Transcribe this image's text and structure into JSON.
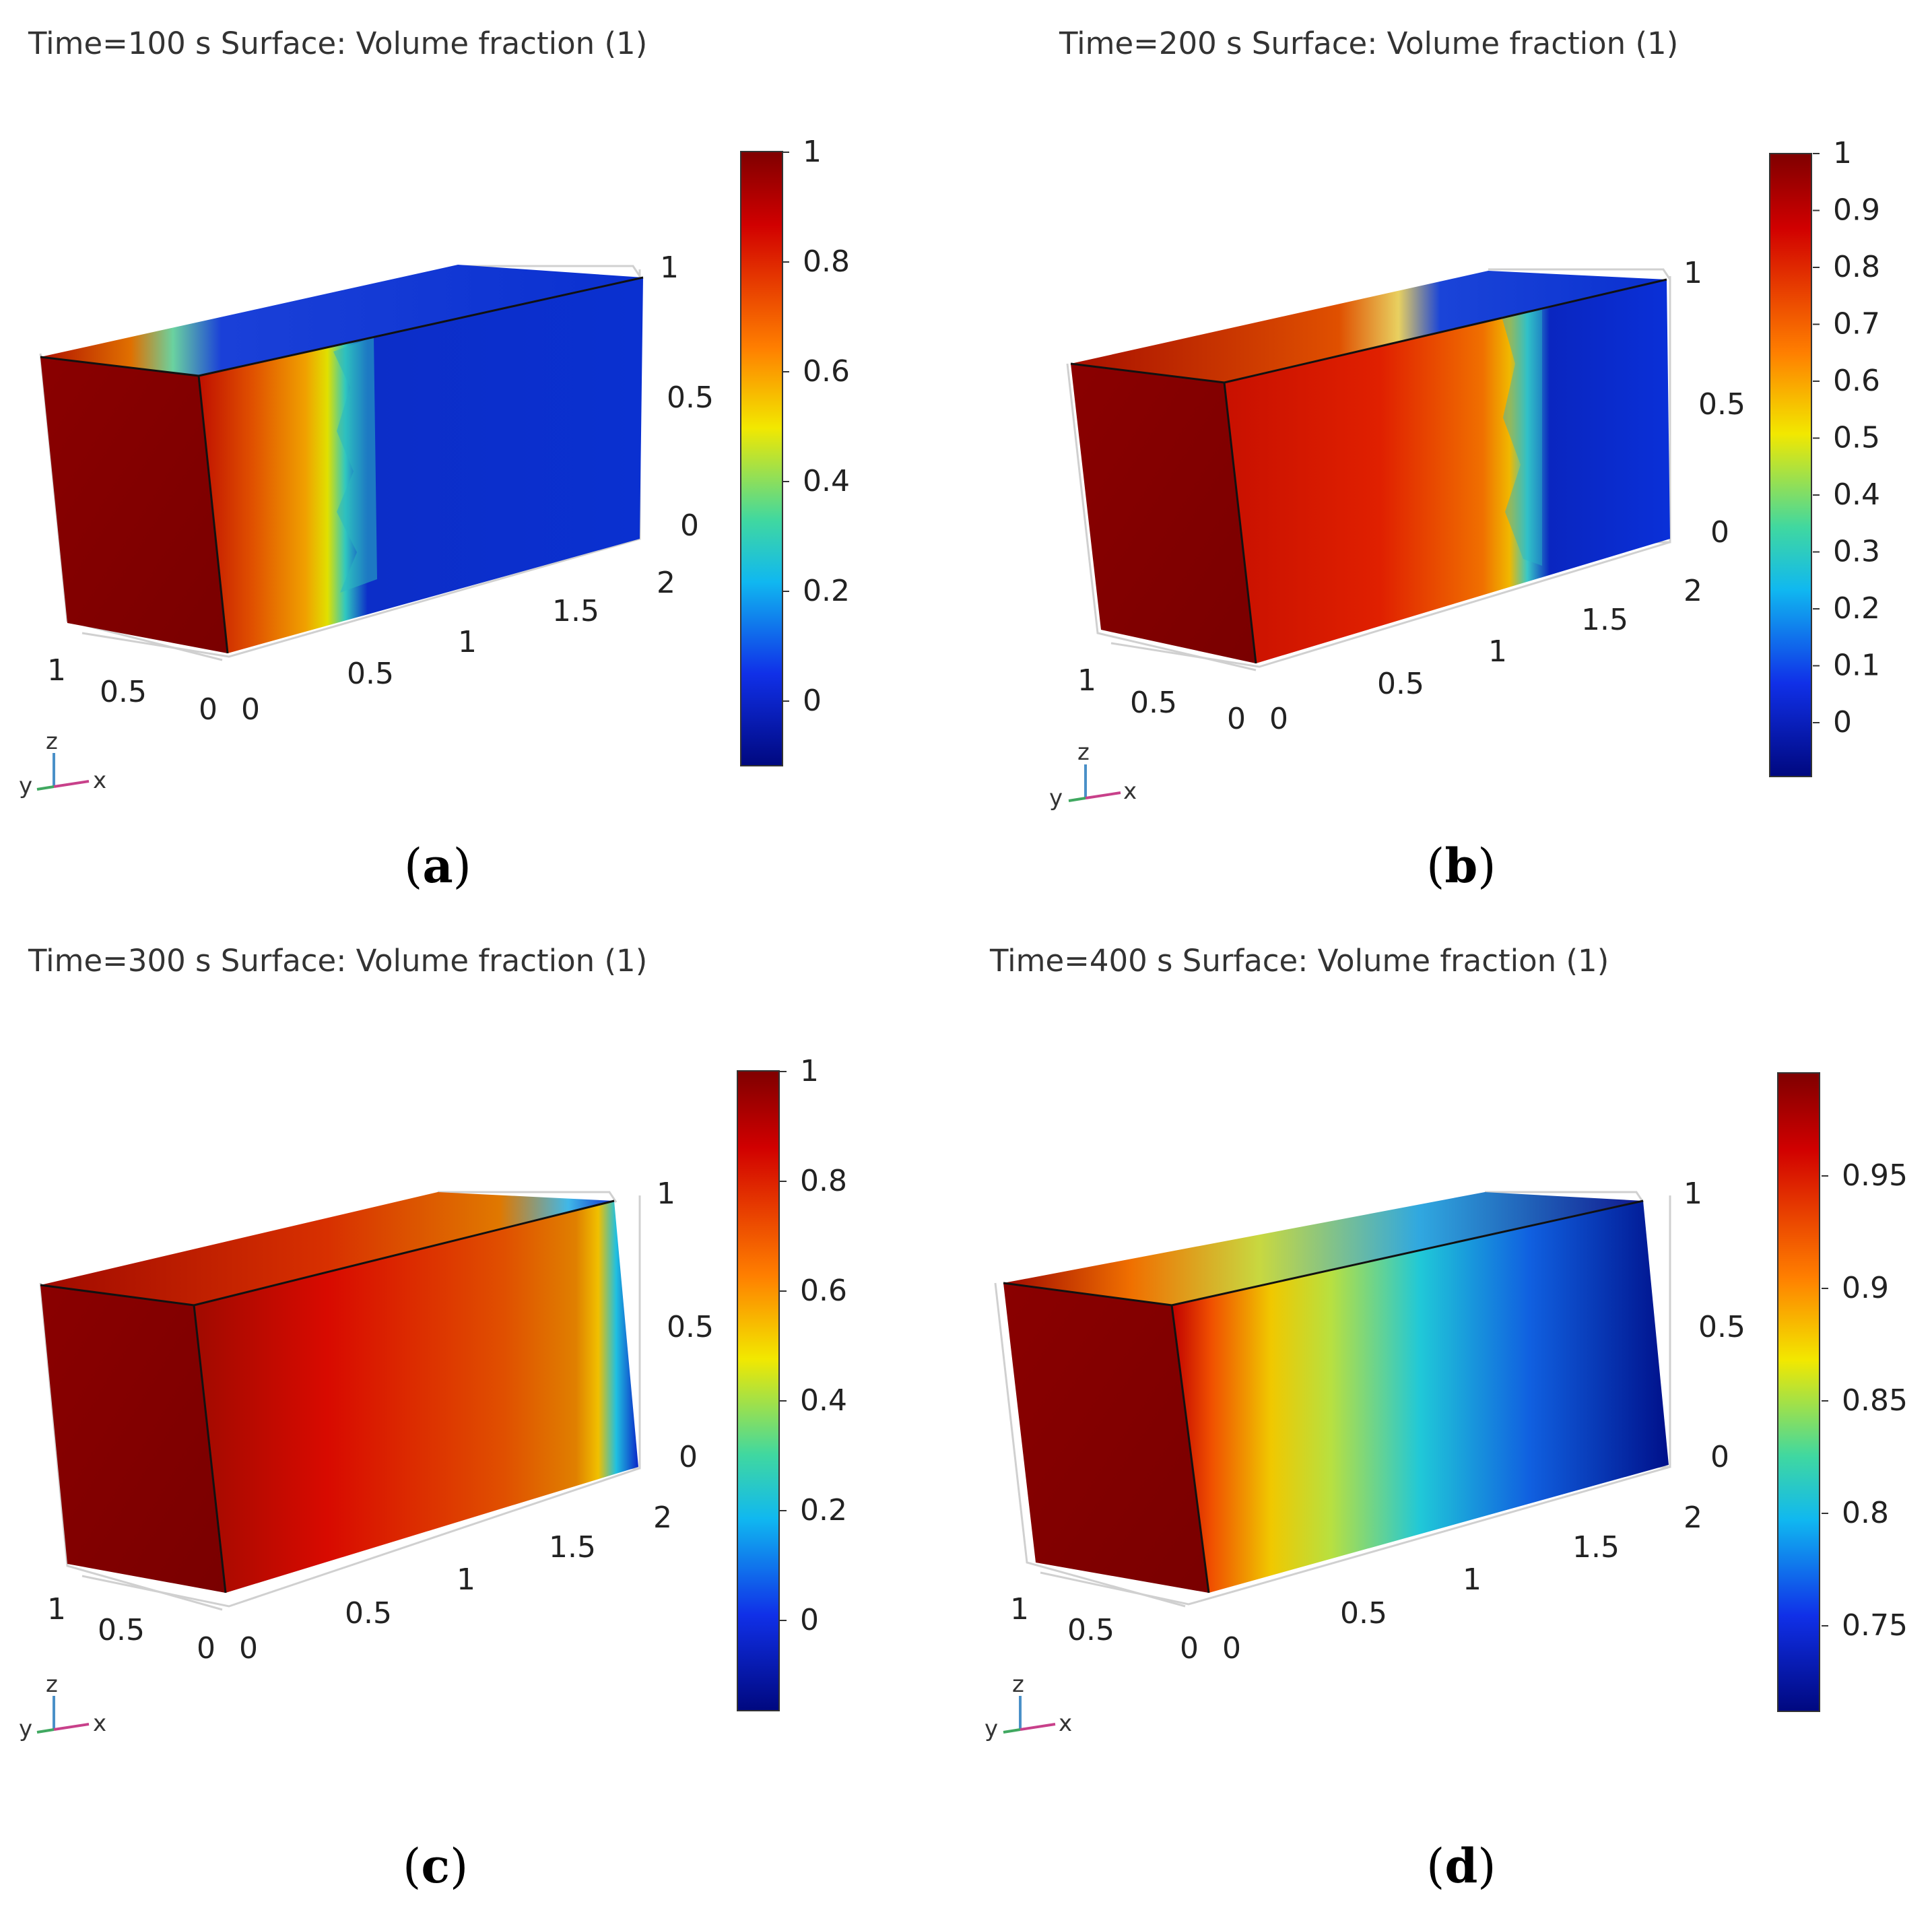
{
  "panels": [
    {
      "id": "a",
      "title": "Time=100 s   Surface: Volume fraction (1)",
      "caption_letter": "a",
      "colorbar_ticks": [
        "1",
        "0.8",
        "0.6",
        "0.4",
        "0.2",
        "0"
      ],
      "z_ticks": [
        "1",
        "0.5",
        "0"
      ],
      "x_ticks": [
        "0",
        "0.5",
        "1",
        "1.5",
        "2"
      ],
      "y_ticks": [
        "1",
        "0.5",
        "0"
      ]
    },
    {
      "id": "b",
      "title": "Time=200 s   Surface: Volume fraction (1)",
      "caption_letter": "b",
      "colorbar_ticks": [
        "1",
        "0.9",
        "0.8",
        "0.7",
        "0.6",
        "0.5",
        "0.4",
        "0.3",
        "0.2",
        "0.1",
        "0"
      ],
      "z_ticks": [
        "1",
        "0.5",
        "0"
      ],
      "x_ticks": [
        "0",
        "0.5",
        "1",
        "1.5",
        "2"
      ],
      "y_ticks": [
        "1",
        "0.5",
        "0"
      ]
    },
    {
      "id": "c",
      "title": "Time=300 s   Surface: Volume fraction (1)",
      "caption_letter": "c",
      "colorbar_ticks": [
        "1",
        "0.8",
        "0.6",
        "0.4",
        "0.2",
        "0"
      ],
      "z_ticks": [
        "1",
        "0.5",
        "0"
      ],
      "x_ticks": [
        "0",
        "0.5",
        "1",
        "1.5",
        "2"
      ],
      "y_ticks": [
        "1",
        "0.5",
        "0"
      ]
    },
    {
      "id": "d",
      "title": "Time=400 s   Surface: Volume fraction (1)",
      "caption_letter": "d",
      "colorbar_ticks": [
        "0.95",
        "0.9",
        "0.85",
        "0.8",
        "0.75"
      ],
      "z_ticks": [
        "1",
        "0.5",
        "0"
      ],
      "x_ticks": [
        "0",
        "0.5",
        "1",
        "1.5",
        "2"
      ],
      "y_ticks": [
        "1",
        "0.5",
        "0"
      ]
    }
  ],
  "triad": {
    "z": "z",
    "y": "y",
    "x": "x"
  },
  "colors": {
    "dark_red": "#7f0000",
    "red": "#d40000",
    "orange": "#f08000",
    "yellow": "#f5e400",
    "cyan": "#20c0e0",
    "blue": "#0a28d8",
    "dark_blue": "#00087a"
  }
}
